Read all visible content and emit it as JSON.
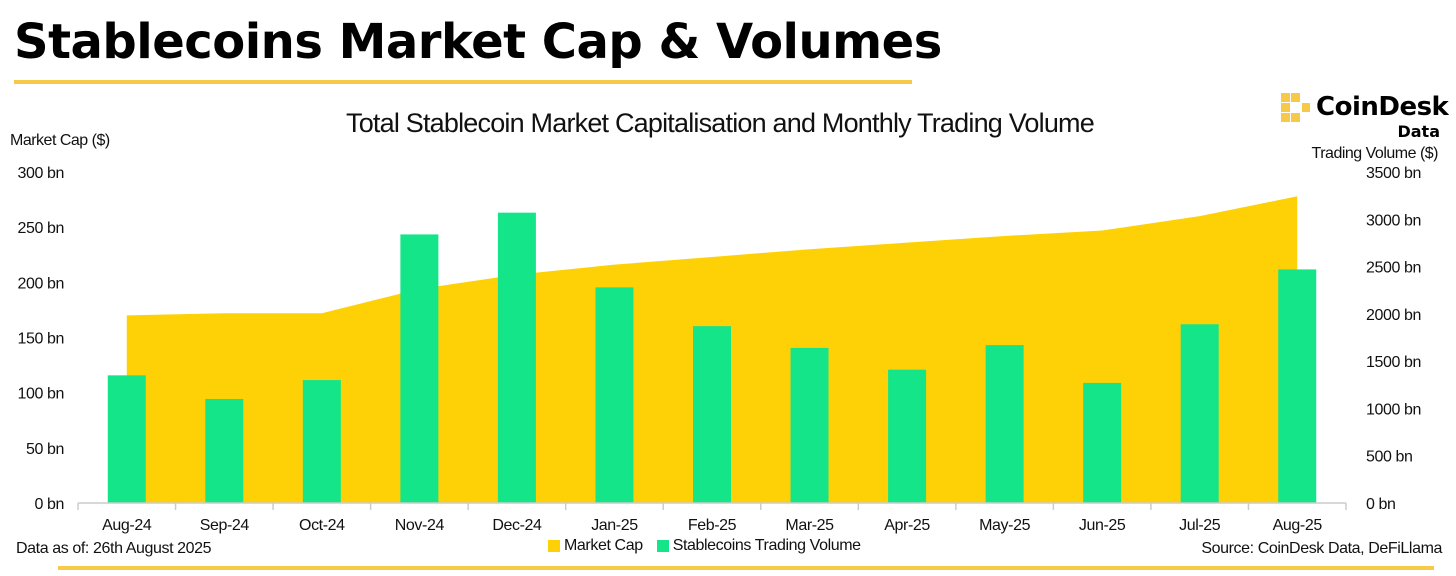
{
  "heading": "Stablecoins Market Cap & Volumes",
  "logo": {
    "name": "CoinDesk",
    "sub": "Data"
  },
  "footer": {
    "data_as_of": "Data as of: 26th August 2025",
    "source": "Source: CoinDesk Data, DeFiLlama"
  },
  "colors": {
    "accent": "#f7c948",
    "market_cap": "#fdd105",
    "volume": "#15e589",
    "axis": "#cccccc"
  },
  "chart_data": {
    "type": "bar",
    "title": "Total Stablecoin Market Capitalisation and Monthly Trading Volume",
    "categories": [
      "Aug-24",
      "Sep-24",
      "Oct-24",
      "Nov-24",
      "Dec-24",
      "Jan-25",
      "Feb-25",
      "Mar-25",
      "Apr-25",
      "May-25",
      "Jun-25",
      "Jul-25",
      "Aug-25"
    ],
    "ylabel_left": "Market Cap ($)",
    "ylabel_right": "Trading Volume ($)",
    "ylim_left": [
      0,
      300
    ],
    "ylim_right": [
      0,
      3500
    ],
    "yticks_left": [
      "0 bn",
      "50 bn",
      "100 bn",
      "150 bn",
      "200 bn",
      "250 bn",
      "300 bn"
    ],
    "yticks_right": [
      "0 bn",
      "500 bn",
      "1000 bn",
      "1500 bn",
      "2000 bn",
      "2500 bn",
      "3000 bn",
      "3500 bn"
    ],
    "series": [
      {
        "name": "Market Cap",
        "type": "area",
        "axis": "left",
        "unit": "bn",
        "values": [
          170,
          172,
          172,
          194,
          207,
          216,
          223,
          230,
          236,
          242,
          247,
          260,
          278
        ]
      },
      {
        "name": "Stablecoins Trading Volume",
        "type": "bar",
        "axis": "right",
        "unit": "bn",
        "values": [
          1350,
          1100,
          1300,
          2840,
          3070,
          2280,
          1870,
          1640,
          1410,
          1670,
          1270,
          1890,
          2470
        ]
      }
    ],
    "legend": [
      "Market Cap",
      "Stablecoins Trading Volume"
    ]
  }
}
